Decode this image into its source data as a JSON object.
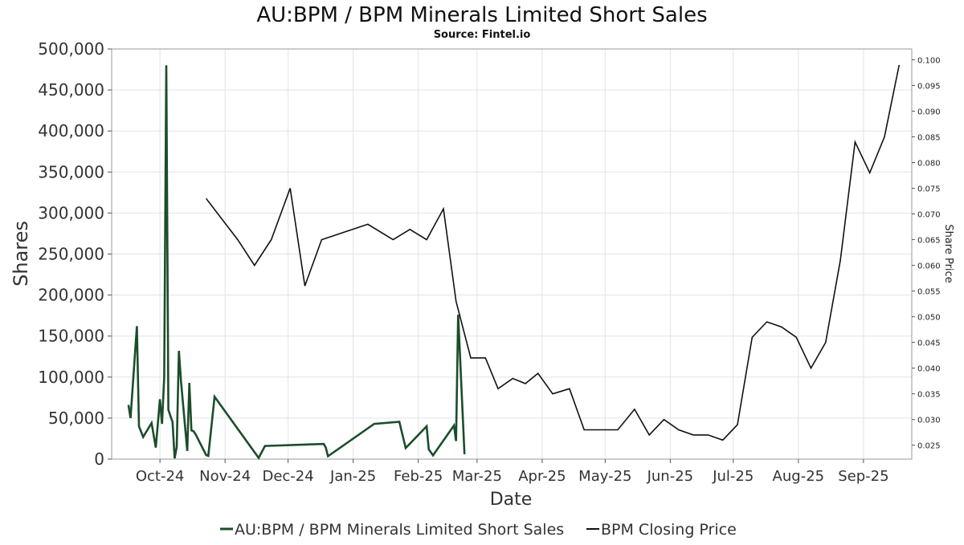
{
  "chart_data": {
    "type": "line",
    "title": "AU:BPM / BPM Minerals Limited Short Sales",
    "subtitle": "Source: Fintel.io",
    "xlabel": "Date",
    "ylabel": "Shares",
    "y2label": "Share Price",
    "ylim": [
      0,
      500000
    ],
    "y2lim": [
      0.0223,
      0.1021
    ],
    "xlim": [
      "2024-09-22",
      "2025-10-08"
    ],
    "grid": true,
    "legend_position": "bottom",
    "x_tick_dates": [
      "2024-10-15",
      "2024-11-15",
      "2024-12-15",
      "2025-01-15",
      "2025-02-15",
      "2025-03-15",
      "2025-04-15",
      "2025-05-15",
      "2025-06-15",
      "2025-07-15",
      "2025-08-15",
      "2025-09-15"
    ],
    "x_tick_labels": [
      "Oct-24",
      "Nov-24",
      "Dec-24",
      "Jan-25",
      "Feb-25",
      "Mar-25",
      "Apr-25",
      "May-25",
      "Jun-25",
      "Jul-25",
      "Aug-25",
      "Sep-25"
    ],
    "y_ticks": [
      0,
      50000,
      100000,
      150000,
      200000,
      250000,
      300000,
      350000,
      400000,
      450000,
      500000
    ],
    "y_tick_labels": [
      "0",
      "50,000",
      "100,000",
      "150,000",
      "200,000",
      "250,000",
      "300,000",
      "350,000",
      "400,000",
      "450,000",
      "500,000"
    ],
    "y2_ticks": [
      0.025,
      0.03,
      0.035,
      0.04,
      0.045,
      0.05,
      0.055,
      0.06,
      0.065,
      0.07,
      0.075,
      0.08,
      0.085,
      0.09,
      0.095,
      0.1
    ],
    "y2_tick_labels": [
      "0.025",
      "0.030",
      "0.035",
      "0.040",
      "0.045",
      "0.050",
      "0.055",
      "0.060",
      "0.065",
      "0.070",
      "0.075",
      "0.080",
      "0.085",
      "0.090",
      "0.095",
      "0.100"
    ],
    "series": [
      {
        "name": "AU:BPM / BPM Minerals Limited Short Sales",
        "axis": "left",
        "color": "#1b4d2a",
        "x": [
          "2024-09-30",
          "2024-10-01",
          "2024-10-04",
          "2024-10-05",
          "2024-10-07",
          "2024-10-11",
          "2024-10-13",
          "2024-10-15",
          "2024-10-16",
          "2024-10-17",
          "2024-10-18",
          "2024-10-19",
          "2024-10-21",
          "2024-10-22",
          "2024-10-23",
          "2024-10-24",
          "2024-10-25",
          "2024-10-28",
          "2024-10-29",
          "2024-10-30",
          "2024-10-31",
          "2024-11-01",
          "2024-11-06",
          "2024-11-07",
          "2024-11-10",
          "2024-12-01",
          "2024-12-04",
          "2025-01-01",
          "2025-01-02",
          "2025-01-03",
          "2025-01-25",
          "2025-02-06",
          "2025-02-09",
          "2025-02-19",
          "2025-02-20",
          "2025-02-22",
          "2025-03-04",
          "2025-03-05",
          "2025-03-06",
          "2025-03-09"
        ],
        "values": [
          66000,
          50000,
          162000,
          40000,
          27000,
          44000,
          14000,
          73000,
          43000,
          100000,
          480000,
          60000,
          45000,
          1000,
          15000,
          132000,
          95000,
          10000,
          93000,
          35000,
          34000,
          30000,
          5000,
          4000,
          76000,
          1500,
          16000,
          18500,
          14000,
          3500,
          43000,
          45500,
          13500,
          40000,
          12000,
          4500,
          41000,
          22000,
          176000,
          6000
        ]
      },
      {
        "name": "BPM Closing Price",
        "axis": "right",
        "color": "#111111",
        "x": [
          "2024-11-06",
          "2024-11-21",
          "2024-11-29",
          "2024-12-07",
          "2024-12-16",
          "2024-12-23",
          "2024-12-31",
          "2025-01-22",
          "2025-02-03",
          "2025-02-11",
          "2025-02-19",
          "2025-02-27",
          "2025-03-05",
          "2025-03-12",
          "2025-03-19",
          "2025-03-25",
          "2025-04-01",
          "2025-04-07",
          "2025-04-13",
          "2025-04-20",
          "2025-04-28",
          "2025-05-05",
          "2025-05-16",
          "2025-05-21",
          "2025-05-29",
          "2025-06-05",
          "2025-06-12",
          "2025-06-19",
          "2025-06-26",
          "2025-07-03",
          "2025-07-10",
          "2025-07-17",
          "2025-07-24",
          "2025-07-31",
          "2025-08-07",
          "2025-08-14",
          "2025-08-21",
          "2025-08-28",
          "2025-09-04",
          "2025-09-11",
          "2025-09-18",
          "2025-09-25",
          "2025-10-02"
        ],
        "values": [
          0.073,
          0.065,
          0.06,
          0.065,
          0.075,
          0.056,
          0.065,
          0.068,
          0.065,
          0.067,
          0.065,
          0.071,
          0.053,
          0.042,
          0.042,
          0.036,
          0.038,
          0.037,
          0.039,
          0.035,
          0.036,
          0.028,
          0.028,
          0.028,
          0.032,
          0.027,
          0.03,
          0.028,
          0.027,
          0.027,
          0.026,
          0.029,
          0.046,
          0.049,
          0.048,
          0.046,
          0.04,
          0.045,
          0.061,
          0.084,
          0.078,
          0.085,
          0.099
        ]
      }
    ]
  }
}
